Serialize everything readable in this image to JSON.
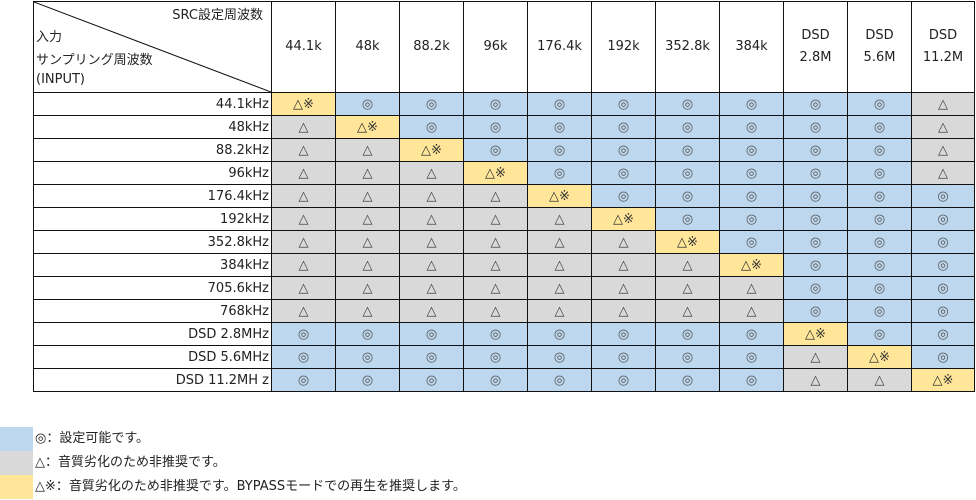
{
  "header": {
    "corner_top": "SRC設定周波数",
    "corner_line1": "入力",
    "corner_line2": "サンプリング周波数",
    "corner_line3": "(INPUT)",
    "columns": [
      {
        "l1": "44.1k",
        "l2": ""
      },
      {
        "l1": "48k",
        "l2": ""
      },
      {
        "l1": "88.2k",
        "l2": ""
      },
      {
        "l1": "96k",
        "l2": ""
      },
      {
        "l1": "176.4k",
        "l2": ""
      },
      {
        "l1": "192k",
        "l2": ""
      },
      {
        "l1": "352.8k",
        "l2": ""
      },
      {
        "l1": "384k",
        "l2": ""
      },
      {
        "l1": "DSD",
        "l2": "2.8M"
      },
      {
        "l1": "DSD",
        "l2": "5.6M"
      },
      {
        "l1": "DSD",
        "l2": "11.2M"
      }
    ]
  },
  "symbols": {
    "ok": "◎",
    "ng": "△",
    "by": "△※"
  },
  "colors": {
    "ok": "#bdd7ee",
    "ng": "#d9d9d9",
    "by": "#ffe699"
  },
  "rows": [
    {
      "label": "44.1kHz",
      "cells": [
        "by",
        "ok",
        "ok",
        "ok",
        "ok",
        "ok",
        "ok",
        "ok",
        "ok",
        "ok",
        "ng"
      ]
    },
    {
      "label": "48kHz",
      "cells": [
        "ng",
        "by",
        "ok",
        "ok",
        "ok",
        "ok",
        "ok",
        "ok",
        "ok",
        "ok",
        "ng"
      ]
    },
    {
      "label": "88.2kHz",
      "cells": [
        "ng",
        "ng",
        "by",
        "ok",
        "ok",
        "ok",
        "ok",
        "ok",
        "ok",
        "ok",
        "ng"
      ]
    },
    {
      "label": "96kHz",
      "cells": [
        "ng",
        "ng",
        "ng",
        "by",
        "ok",
        "ok",
        "ok",
        "ok",
        "ok",
        "ok",
        "ng"
      ]
    },
    {
      "label": "176.4kHz",
      "cells": [
        "ng",
        "ng",
        "ng",
        "ng",
        "by",
        "ok",
        "ok",
        "ok",
        "ok",
        "ok",
        "ok"
      ]
    },
    {
      "label": "192kHz",
      "cells": [
        "ng",
        "ng",
        "ng",
        "ng",
        "ng",
        "by",
        "ok",
        "ok",
        "ok",
        "ok",
        "ok"
      ]
    },
    {
      "label": "352.8kHz",
      "cells": [
        "ng",
        "ng",
        "ng",
        "ng",
        "ng",
        "ng",
        "by",
        "ok",
        "ok",
        "ok",
        "ok"
      ]
    },
    {
      "label": "384kHz",
      "cells": [
        "ng",
        "ng",
        "ng",
        "ng",
        "ng",
        "ng",
        "ng",
        "by",
        "ok",
        "ok",
        "ok"
      ]
    },
    {
      "label": "705.6kHz",
      "cells": [
        "ng",
        "ng",
        "ng",
        "ng",
        "ng",
        "ng",
        "ng",
        "ng",
        "ok",
        "ok",
        "ok"
      ]
    },
    {
      "label": "768kHz",
      "cells": [
        "ng",
        "ng",
        "ng",
        "ng",
        "ng",
        "ng",
        "ng",
        "ng",
        "ok",
        "ok",
        "ok"
      ]
    },
    {
      "label": "DSD 2.8MHz",
      "cells": [
        "ok",
        "ok",
        "ok",
        "ok",
        "ok",
        "ok",
        "ok",
        "ok",
        "by",
        "ok",
        "ok"
      ]
    },
    {
      "label": "DSD 5.6MHz",
      "cells": [
        "ok",
        "ok",
        "ok",
        "ok",
        "ok",
        "ok",
        "ok",
        "ok",
        "ng",
        "by",
        "ok"
      ]
    },
    {
      "label": "DSD 11.2MH z",
      "cells": [
        "ok",
        "ok",
        "ok",
        "ok",
        "ok",
        "ok",
        "ok",
        "ok",
        "ng",
        "ng",
        "by"
      ]
    }
  ],
  "legend": [
    {
      "key": "ok",
      "text": "◎：設定可能です。"
    },
    {
      "key": "ng",
      "text": "△：音質劣化のため非推奨です。"
    },
    {
      "key": "by",
      "text": "△※：音質劣化のため非推奨です。BYPASSモードでの再生を推奨します。"
    }
  ]
}
